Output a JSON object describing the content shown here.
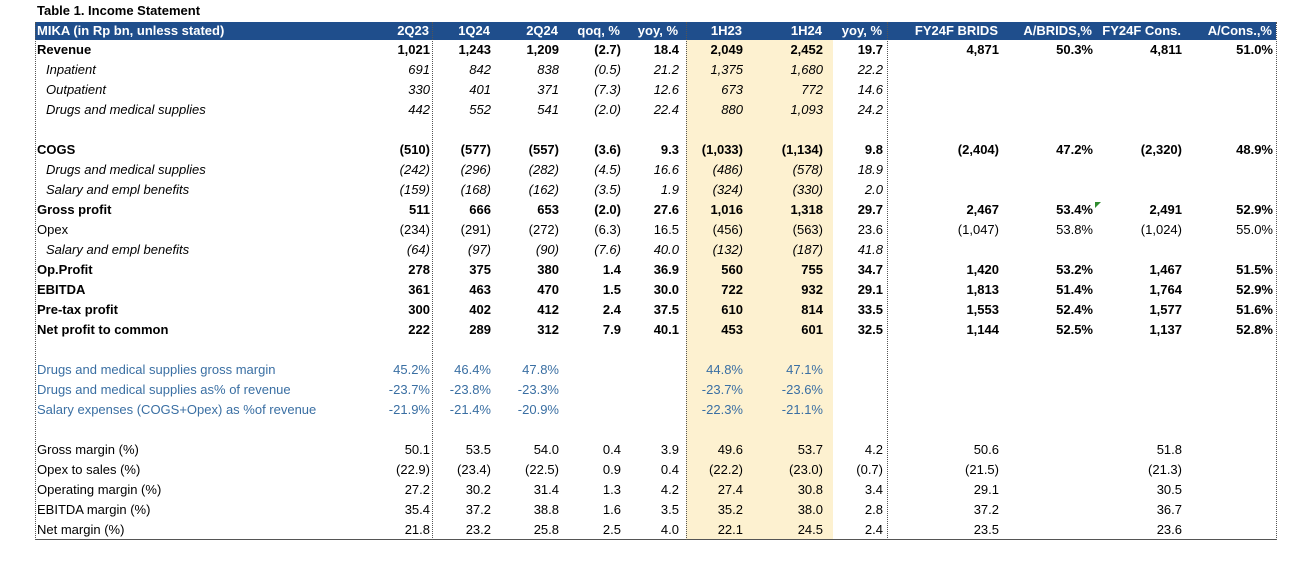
{
  "caption": "Table 1. Income Statement",
  "header": [
    "MIKA (in Rp bn, unless stated)",
    "2Q23",
    "1Q24",
    "2Q24",
    "qoq, %",
    "yoy, %",
    "1H23",
    "1H24",
    "yoy, %",
    "FY24F BRIDS",
    "A/BRIDS,%",
    "FY24F Cons.",
    "A/Cons.,%"
  ],
  "rows": [
    {
      "style": "bold",
      "label": "Revenue",
      "values": [
        "1,021",
        "1,243",
        "1,209",
        "(2.7)",
        "18.4",
        "2,049",
        "2,452",
        "19.7",
        "4,871",
        "50.3%",
        "4,811",
        "51.0%"
      ]
    },
    {
      "style": "ital",
      "label": "Inpatient",
      "values": [
        "691",
        "842",
        "838",
        "(0.5)",
        "21.2",
        "1,375",
        "1,680",
        "22.2",
        "",
        "",
        "",
        ""
      ]
    },
    {
      "style": "ital",
      "label": "Outpatient",
      "values": [
        "330",
        "401",
        "371",
        "(7.3)",
        "12.6",
        "673",
        "772",
        "14.6",
        "",
        "",
        "",
        ""
      ]
    },
    {
      "style": "ital",
      "label": "Drugs and medical supplies",
      "values": [
        "442",
        "552",
        "541",
        "(2.0)",
        "22.4",
        "880",
        "1,093",
        "24.2",
        "",
        "",
        "",
        ""
      ]
    },
    {
      "style": "blank",
      "label": "",
      "values": []
    },
    {
      "style": "bold",
      "label": "COGS",
      "values": [
        "(510)",
        "(577)",
        "(557)",
        "(3.6)",
        "9.3",
        "(1,033)",
        "(1,134)",
        "9.8",
        "(2,404)",
        "47.2%",
        "(2,320)",
        "48.9%"
      ]
    },
    {
      "style": "ital",
      "label": "Drugs and medical supplies",
      "values": [
        "(242)",
        "(296)",
        "(282)",
        "(4.5)",
        "16.6",
        "(486)",
        "(578)",
        "18.9",
        "",
        "",
        "",
        ""
      ]
    },
    {
      "style": "ital",
      "label": "Salary and empl benefits",
      "values": [
        "(159)",
        "(168)",
        "(162)",
        "(3.5)",
        "1.9",
        "(324)",
        "(330)",
        "2.0",
        "",
        "",
        "",
        ""
      ]
    },
    {
      "style": "bold",
      "label": "Gross profit",
      "values": [
        "511",
        "666",
        "653",
        "(2.0)",
        "27.6",
        "1,016",
        "1,318",
        "29.7",
        "2,467",
        "53.4%",
        "2,491",
        "52.9%"
      ]
    },
    {
      "style": "plain",
      "label": "Opex",
      "values": [
        "(234)",
        "(291)",
        "(272)",
        "(6.3)",
        "16.5",
        "(456)",
        "(563)",
        "23.6",
        "(1,047)",
        "53.8%",
        "(1,024)",
        "55.0%"
      ]
    },
    {
      "style": "ital",
      "label": "Salary and empl benefits",
      "values": [
        "(64)",
        "(97)",
        "(90)",
        "(7.6)",
        "40.0",
        "(132)",
        "(187)",
        "41.8",
        "",
        "",
        "",
        ""
      ]
    },
    {
      "style": "bold",
      "label": "Op.Profit",
      "values": [
        "278",
        "375",
        "380",
        "1.4",
        "36.9",
        "560",
        "755",
        "34.7",
        "1,420",
        "53.2%",
        "1,467",
        "51.5%"
      ]
    },
    {
      "style": "bold",
      "label": "EBITDA",
      "values": [
        "361",
        "463",
        "470",
        "1.5",
        "30.0",
        "722",
        "932",
        "29.1",
        "1,813",
        "51.4%",
        "1,764",
        "52.9%"
      ]
    },
    {
      "style": "bold",
      "label": "Pre-tax profit",
      "values": [
        "300",
        "402",
        "412",
        "2.4",
        "37.5",
        "610",
        "814",
        "33.5",
        "1,553",
        "52.4%",
        "1,577",
        "51.6%"
      ]
    },
    {
      "style": "bold",
      "label": "Net profit to common",
      "values": [
        "222",
        "289",
        "312",
        "7.9",
        "40.1",
        "453",
        "601",
        "32.5",
        "1,144",
        "52.5%",
        "1,137",
        "52.8%"
      ]
    },
    {
      "style": "blank",
      "label": "",
      "values": []
    },
    {
      "style": "blue",
      "label": "Drugs and medical supplies gross margin",
      "values": [
        "45.2%",
        "46.4%",
        "47.8%",
        "",
        "",
        "44.8%",
        "47.1%",
        "",
        "",
        "",
        "",
        ""
      ]
    },
    {
      "style": "blue",
      "label": "Drugs and medical supplies as% of revenue",
      "values": [
        "-23.7%",
        "-23.8%",
        "-23.3%",
        "",
        "",
        "-23.7%",
        "-23.6%",
        "",
        "",
        "",
        "",
        ""
      ]
    },
    {
      "style": "blue",
      "label": "Salary expenses (COGS+Opex) as %of revenue",
      "values": [
        "-21.9%",
        "-21.4%",
        "-20.9%",
        "",
        "",
        "-22.3%",
        "-21.1%",
        "",
        "",
        "",
        "",
        ""
      ]
    },
    {
      "style": "blank",
      "label": "",
      "values": []
    },
    {
      "style": "plain",
      "label": "Gross margin (%)",
      "values": [
        "50.1",
        "53.5",
        "54.0",
        "0.4",
        "3.9",
        "49.6",
        "53.7",
        "4.2",
        "50.6",
        "",
        "51.8",
        ""
      ]
    },
    {
      "style": "plain",
      "label": "Opex to sales (%)",
      "values": [
        "(22.9)",
        "(23.4)",
        "(22.5)",
        "0.9",
        "0.4",
        "(22.2)",
        "(23.0)",
        "(0.7)",
        "(21.5)",
        "",
        "(21.3)",
        ""
      ]
    },
    {
      "style": "plain",
      "label": "Operating margin (%)",
      "values": [
        "27.2",
        "30.2",
        "31.4",
        "1.3",
        "4.2",
        "27.4",
        "30.8",
        "3.4",
        "29.1",
        "",
        "30.5",
        ""
      ]
    },
    {
      "style": "plain",
      "label": "EBITDA margin (%)",
      "values": [
        "35.4",
        "37.2",
        "38.8",
        "1.6",
        "3.5",
        "35.2",
        "38.0",
        "2.8",
        "37.2",
        "",
        "36.7",
        ""
      ]
    },
    {
      "style": "plain",
      "label": "Net margin (%)",
      "values": [
        "21.8",
        "23.2",
        "25.8",
        "2.5",
        "4.0",
        "22.1",
        "24.5",
        "2.4",
        "23.5",
        "",
        "23.6",
        ""
      ]
    }
  ]
}
